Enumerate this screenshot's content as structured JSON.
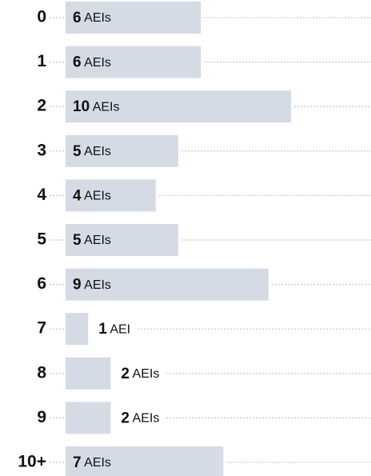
{
  "chart_data": {
    "type": "bar",
    "orientation": "horizontal",
    "categories": [
      "0",
      "1",
      "2",
      "3",
      "4",
      "5",
      "6",
      "7",
      "8",
      "9",
      "10+"
    ],
    "values": [
      6,
      6,
      10,
      5,
      4,
      5,
      9,
      1,
      2,
      2,
      7
    ],
    "value_labels": [
      "6 AEIs",
      "6 AEIs",
      "10 AEIs",
      "5 AEIs",
      "4 AEIs",
      "5 AEIs",
      "9 AEIs",
      "1 AEI",
      "2 AEIs",
      "2 AEIs",
      "7 AEIs"
    ],
    "color": "#d5dbe5"
  }
}
